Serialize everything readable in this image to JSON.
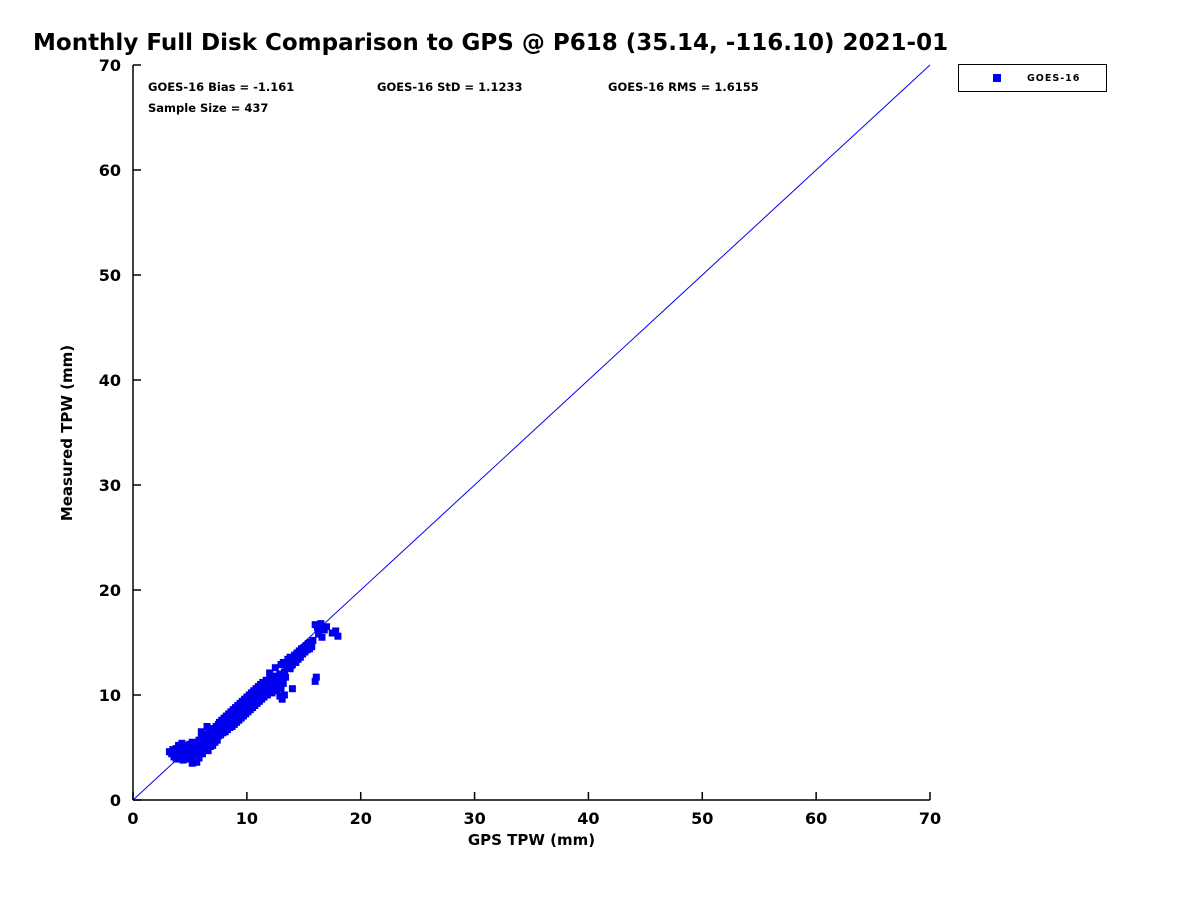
{
  "page": {
    "title": "Monthly Full Disk Comparison to GPS @ P618 (35.14, -116.10) 2021-01"
  },
  "annotations": {
    "bias_label": "GOES-16 Bias = -1.161",
    "std_label": "GOES-16 StD = 1.1233",
    "rms_label": "GOES-16 RMS = 1.6155",
    "sample_label": "Sample Size = 437",
    "bias": -1.161,
    "std": 1.1233,
    "rms": 1.6155,
    "sample_size": 437
  },
  "legend": {
    "label": "GOES-16",
    "marker_color": "#0000ee"
  },
  "chart_data": {
    "type": "scatter",
    "title": "Monthly Full Disk Comparison to GPS @ P618 (35.14, -116.10) 2021-01",
    "xlabel": "GPS TPW (mm)",
    "ylabel": "Measured TPW (mm)",
    "xlim": [
      0,
      70
    ],
    "ylim": [
      0,
      70
    ],
    "xticks": [
      0,
      10,
      20,
      30,
      40,
      50,
      60,
      70
    ],
    "yticks": [
      0,
      10,
      20,
      30,
      40,
      50,
      60,
      70
    ],
    "grid": false,
    "legend_position": "top-right-outside",
    "marker_color": "#0000ee",
    "line_color": "#0000ee",
    "series_name": "GOES-16",
    "reference_line": {
      "x": [
        0,
        70
      ],
      "y": [
        0,
        70
      ]
    },
    "points": [
      [
        3.2,
        4.6
      ],
      [
        3.4,
        4.4
      ],
      [
        3.5,
        4.8
      ],
      [
        3.6,
        4.1
      ],
      [
        3.7,
        4.5
      ],
      [
        3.8,
        3.9
      ],
      [
        3.8,
        4.9
      ],
      [
        3.9,
        4.3
      ],
      [
        4.0,
        4.6
      ],
      [
        4.0,
        4.0
      ],
      [
        4.1,
        4.8
      ],
      [
        4.1,
        4.2
      ],
      [
        4.2,
        4.5
      ],
      [
        4.2,
        5.0
      ],
      [
        4.3,
        4.1
      ],
      [
        4.3,
        4.7
      ],
      [
        4.4,
        4.4
      ],
      [
        4.4,
        3.8
      ],
      [
        4.5,
        4.9
      ],
      [
        4.5,
        4.3
      ],
      [
        4.6,
        4.6
      ],
      [
        4.6,
        5.2
      ],
      [
        4.7,
        4.0
      ],
      [
        4.7,
        4.7
      ],
      [
        4.8,
        4.4
      ],
      [
        4.8,
        5.0
      ],
      [
        4.9,
        4.2
      ],
      [
        4.9,
        4.8
      ],
      [
        5.0,
        4.5
      ],
      [
        5.0,
        5.3
      ],
      [
        5.1,
        4.1
      ],
      [
        5.1,
        4.9
      ],
      [
        5.2,
        4.6
      ],
      [
        5.2,
        5.5
      ],
      [
        5.3,
        4.3
      ],
      [
        5.3,
        5.0
      ],
      [
        5.4,
        4.7
      ],
      [
        5.5,
        5.2
      ],
      [
        5.5,
        4.4
      ],
      [
        4.0,
        5.2
      ],
      [
        4.3,
        5.4
      ],
      [
        4.6,
        3.9
      ],
      [
        5.0,
        3.9
      ],
      [
        5.4,
        3.6
      ],
      [
        5.2,
        3.5
      ],
      [
        5.6,
        3.6
      ],
      [
        5.8,
        4.0
      ],
      [
        5.6,
        4.8
      ],
      [
        5.7,
        5.3
      ],
      [
        5.7,
        4.5
      ],
      [
        5.8,
        5.7
      ],
      [
        5.9,
        4.9
      ],
      [
        5.9,
        5.5
      ],
      [
        6.0,
        4.6
      ],
      [
        6.0,
        5.9
      ],
      [
        6.1,
        5.1
      ],
      [
        6.1,
        4.4
      ],
      [
        6.2,
        5.6
      ],
      [
        6.2,
        6.1
      ],
      [
        6.3,
        4.8
      ],
      [
        6.3,
        5.3
      ],
      [
        6.4,
        5.8
      ],
      [
        6.4,
        6.3
      ],
      [
        6.5,
        5.0
      ],
      [
        6.5,
        5.5
      ],
      [
        6.6,
        6.0
      ],
      [
        6.6,
        4.7
      ],
      [
        6.7,
        5.4
      ],
      [
        6.7,
        6.4
      ],
      [
        6.8,
        5.8
      ],
      [
        6.8,
        5.1
      ],
      [
        6.9,
        6.2
      ],
      [
        6.9,
        5.6
      ],
      [
        7.0,
        6.6
      ],
      [
        7.0,
        5.2
      ],
      [
        7.1,
        5.9
      ],
      [
        7.1,
        6.8
      ],
      [
        7.2,
        5.5
      ],
      [
        7.2,
        6.3
      ],
      [
        7.3,
        6.0
      ],
      [
        7.3,
        7.0
      ],
      [
        7.4,
        5.7
      ],
      [
        7.4,
        6.5
      ],
      [
        7.5,
        6.1
      ],
      [
        7.5,
        7.2
      ],
      [
        6.0,
        6.5
      ],
      [
        6.5,
        7.0
      ],
      [
        7.6,
        6.7
      ],
      [
        7.6,
        7.4
      ],
      [
        7.7,
        6.2
      ],
      [
        7.7,
        7.0
      ],
      [
        7.8,
        6.8
      ],
      [
        7.8,
        7.6
      ],
      [
        7.9,
        6.4
      ],
      [
        7.9,
        7.2
      ],
      [
        8.0,
        6.9
      ],
      [
        8.0,
        7.8
      ],
      [
        8.1,
        6.5
      ],
      [
        8.1,
        7.3
      ],
      [
        8.2,
        7.0
      ],
      [
        8.2,
        8.0
      ],
      [
        8.3,
        6.7
      ],
      [
        8.3,
        7.5
      ],
      [
        8.4,
        7.1
      ],
      [
        8.4,
        8.2
      ],
      [
        8.5,
        6.9
      ],
      [
        8.5,
        7.7
      ],
      [
        8.6,
        7.3
      ],
      [
        8.6,
        8.4
      ],
      [
        8.7,
        7.0
      ],
      [
        8.7,
        7.9
      ],
      [
        8.8,
        7.5
      ],
      [
        8.8,
        8.6
      ],
      [
        8.9,
        7.2
      ],
      [
        8.9,
        8.1
      ],
      [
        9.0,
        7.7
      ],
      [
        9.0,
        8.8
      ],
      [
        9.1,
        7.4
      ],
      [
        9.1,
        8.3
      ],
      [
        9.2,
        7.9
      ],
      [
        9.2,
        9.0
      ],
      [
        9.3,
        7.6
      ],
      [
        9.3,
        8.5
      ],
      [
        9.4,
        8.1
      ],
      [
        9.4,
        9.2
      ],
      [
        9.5,
        7.8
      ],
      [
        9.5,
        8.7
      ],
      [
        9.6,
        8.3
      ],
      [
        9.6,
        9.4
      ],
      [
        9.7,
        8.0
      ],
      [
        9.7,
        8.9
      ],
      [
        9.8,
        8.5
      ],
      [
        9.8,
        9.6
      ],
      [
        9.9,
        8.2
      ],
      [
        9.9,
        9.1
      ],
      [
        10.0,
        8.7
      ],
      [
        10.0,
        9.8
      ],
      [
        10.1,
        8.4
      ],
      [
        10.1,
        9.3
      ],
      [
        10.2,
        8.9
      ],
      [
        10.2,
        10.0
      ],
      [
        10.3,
        8.6
      ],
      [
        10.3,
        9.5
      ],
      [
        10.4,
        9.1
      ],
      [
        10.4,
        10.2
      ],
      [
        10.5,
        8.8
      ],
      [
        10.5,
        9.7
      ],
      [
        10.6,
        9.3
      ],
      [
        10.6,
        10.4
      ],
      [
        10.7,
        9.0
      ],
      [
        10.7,
        9.9
      ],
      [
        10.8,
        9.5
      ],
      [
        10.8,
        10.6
      ],
      [
        10.9,
        9.2
      ],
      [
        10.9,
        10.1
      ],
      [
        11.0,
        9.7
      ],
      [
        11.0,
        10.8
      ],
      [
        11.1,
        9.4
      ],
      [
        11.1,
        10.3
      ],
      [
        11.2,
        9.9
      ],
      [
        11.2,
        11.0
      ],
      [
        11.3,
        9.6
      ],
      [
        11.3,
        10.5
      ],
      [
        11.4,
        10.1
      ],
      [
        11.4,
        11.2
      ],
      [
        11.5,
        9.8
      ],
      [
        11.5,
        10.7
      ],
      [
        11.6,
        10.3
      ],
      [
        11.7,
        11.4
      ],
      [
        11.8,
        10.0
      ],
      [
        11.9,
        10.9
      ],
      [
        12.0,
        10.5
      ],
      [
        12.1,
        11.6
      ],
      [
        12.2,
        10.2
      ],
      [
        12.3,
        11.1
      ],
      [
        12.4,
        10.7
      ],
      [
        12.5,
        11.8
      ],
      [
        12.6,
        10.4
      ],
      [
        12.7,
        11.3
      ],
      [
        12.8,
        10.9
      ],
      [
        12.9,
        12.0
      ],
      [
        13.0,
        10.6
      ],
      [
        13.1,
        11.5
      ],
      [
        13.2,
        11.1
      ],
      [
        13.3,
        12.2
      ],
      [
        13.4,
        11.7
      ],
      [
        12.0,
        12.1
      ],
      [
        12.5,
        12.6
      ],
      [
        13.0,
        12.9
      ],
      [
        13.2,
        13.1
      ],
      [
        13.5,
        12.8
      ],
      [
        13.6,
        13.4
      ],
      [
        13.7,
        12.6
      ],
      [
        13.8,
        13.6
      ],
      [
        13.9,
        12.8
      ],
      [
        14.0,
        13.5
      ],
      [
        14.0,
        12.9
      ],
      [
        13.6,
        12.9
      ],
      [
        14.1,
        13.2
      ],
      [
        13.8,
        12.5
      ],
      [
        14.2,
        13.8
      ],
      [
        14.3,
        13.1
      ],
      [
        14.4,
        14.0
      ],
      [
        14.5,
        13.4
      ],
      [
        14.6,
        14.2
      ],
      [
        14.7,
        13.6
      ],
      [
        14.8,
        14.4
      ],
      [
        14.9,
        13.9
      ],
      [
        15.0,
        14.5
      ],
      [
        15.1,
        14.1
      ],
      [
        15.2,
        14.7
      ],
      [
        15.3,
        14.3
      ],
      [
        15.4,
        14.9
      ],
      [
        15.5,
        14.4
      ],
      [
        15.6,
        15.0
      ],
      [
        15.7,
        14.6
      ],
      [
        15.8,
        15.2
      ],
      [
        16.0,
        16.7
      ],
      [
        16.2,
        16.4
      ],
      [
        16.5,
        16.8
      ],
      [
        16.8,
        16.2
      ],
      [
        17.0,
        16.5
      ],
      [
        17.5,
        15.9
      ],
      [
        17.8,
        16.1
      ],
      [
        18.0,
        15.6
      ],
      [
        16.3,
        15.8
      ],
      [
        16.6,
        15.5
      ],
      [
        13.1,
        9.6
      ],
      [
        13.3,
        10.0
      ],
      [
        14.0,
        10.6
      ],
      [
        16.0,
        11.3
      ],
      [
        16.1,
        11.7
      ],
      [
        12.9,
        9.9
      ]
    ]
  }
}
